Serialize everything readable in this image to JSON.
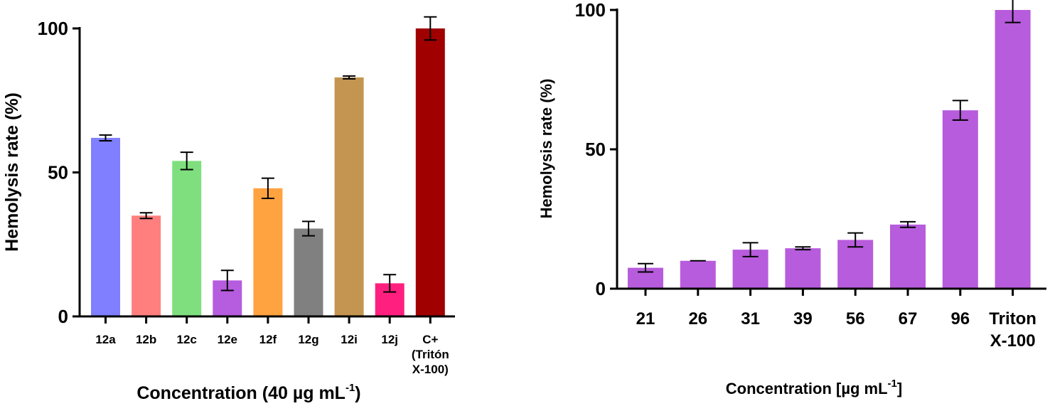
{
  "chart_data": [
    {
      "type": "bar",
      "title": "",
      "xlabel": "Concentration (40 µg mL",
      "xlabel_sup": "-1",
      "xlabel_end": ")",
      "ylabel": "Hemolysis rate (%)",
      "ylim": [
        0,
        100
      ],
      "yticks": [
        "0",
        "50",
        "100"
      ],
      "grid": false,
      "legend": "none",
      "categories": [
        {
          "lines": [
            "12a"
          ]
        },
        {
          "lines": [
            "12b"
          ]
        },
        {
          "lines": [
            "12c"
          ]
        },
        {
          "lines": [
            "12e"
          ]
        },
        {
          "lines": [
            "12f"
          ]
        },
        {
          "lines": [
            "12g"
          ]
        },
        {
          "lines": [
            "12i"
          ]
        },
        {
          "lines": [
            "12j"
          ]
        },
        {
          "lines": [
            "C+",
            "(Tritón",
            "X-100)"
          ]
        }
      ],
      "values": [
        62,
        35,
        54,
        12.5,
        44.5,
        30.5,
        83,
        11.5,
        100
      ],
      "errors": [
        1,
        1,
        3,
        3.5,
        3.5,
        2.5,
        0.5,
        3,
        4
      ],
      "colors": [
        "#7f7fff",
        "#ff7f7f",
        "#7fdf7f",
        "#b65cde",
        "#ffa340",
        "#808080",
        "#c49550",
        "#ff1f7f",
        "#a00000"
      ]
    },
    {
      "type": "bar",
      "title": "",
      "xlabel": "Concentration [µg mL",
      "xlabel_sup": "-1",
      "xlabel_end": "]",
      "ylabel": "Hemolysis rate (%)",
      "ylim": [
        0,
        100
      ],
      "yticks": [
        "0",
        "50",
        "100"
      ],
      "grid": false,
      "legend": "none",
      "categories": [
        {
          "lines": [
            "21"
          ]
        },
        {
          "lines": [
            "26"
          ]
        },
        {
          "lines": [
            "31"
          ]
        },
        {
          "lines": [
            "39"
          ]
        },
        {
          "lines": [
            "56"
          ]
        },
        {
          "lines": [
            "67"
          ]
        },
        {
          "lines": [
            "96"
          ]
        },
        {
          "lines": [
            "Triton",
            "X-100"
          ]
        }
      ],
      "values": [
        7.5,
        10,
        14,
        14.5,
        17.5,
        23,
        64,
        100
      ],
      "errors": [
        1.5,
        0,
        2.5,
        0.5,
        2.5,
        1,
        3.5,
        4.5
      ],
      "colors": [
        "#b75cdc",
        "#b75cdc",
        "#b75cdc",
        "#b75cdc",
        "#b75cdc",
        "#b75cdc",
        "#b75cdc",
        "#b75cdc"
      ]
    }
  ]
}
